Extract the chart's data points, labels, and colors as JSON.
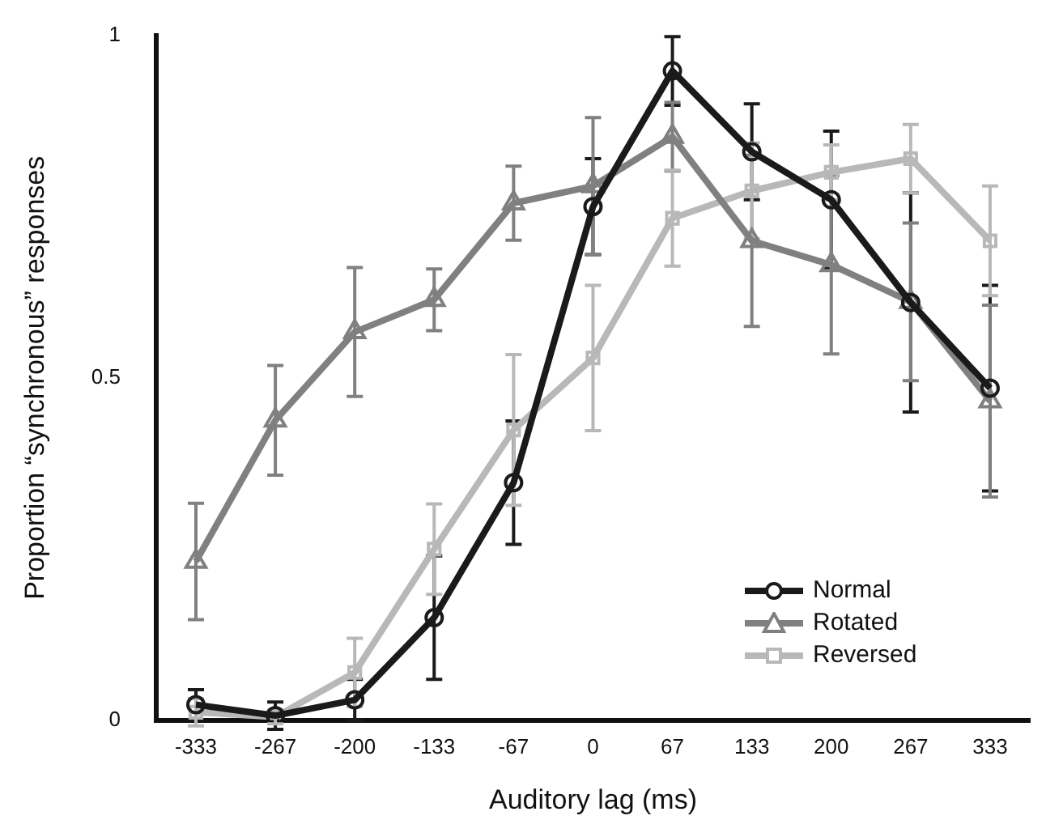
{
  "chart_data": {
    "type": "line",
    "xlabel": "Auditory lag (ms)",
    "ylabel": "Proportion “synchronous” responses",
    "categories": [
      "-333",
      "-267",
      "-200",
      "-133",
      "-67",
      "0",
      "67",
      "133",
      "200",
      "267",
      "333"
    ],
    "ylim": [
      0,
      1
    ],
    "yticks": [
      0,
      0.5,
      1
    ],
    "grid": false,
    "legend": "bottom right",
    "line_style": "solid",
    "series": [
      {
        "name": "Normal",
        "color": "#1a1a1a",
        "marker": "circle",
        "values": [
          0.023,
          0.007,
          0.03,
          0.15,
          0.347,
          0.75,
          0.948,
          0.83,
          0.76,
          0.61,
          0.485
        ],
        "errors": [
          0.022,
          0.02,
          0.03,
          0.09,
          0.09,
          0.07,
          0.05,
          0.07,
          0.1,
          0.16,
          0.15
        ]
      },
      {
        "name": "Rotated",
        "color": "#808080",
        "marker": "triangle",
        "values": [
          0.232,
          0.438,
          0.567,
          0.614,
          0.755,
          0.78,
          0.852,
          0.7,
          0.665,
          0.611,
          0.466
        ],
        "errors": [
          0.085,
          0.08,
          0.094,
          0.045,
          0.054,
          0.1,
          0.05,
          0.125,
          0.13,
          0.115,
          0.14
        ]
      },
      {
        "name": "Reversed",
        "color": "#b8b8b8",
        "marker": "square",
        "values": [
          0.012,
          0.005,
          0.07,
          0.25,
          0.424,
          0.529,
          0.733,
          0.773,
          0.8,
          0.82,
          0.7
        ],
        "errors": [
          0.02,
          0.01,
          0.05,
          0.066,
          0.11,
          0.106,
          0.07,
          0.07,
          0.04,
          0.05,
          0.08
        ]
      }
    ]
  }
}
